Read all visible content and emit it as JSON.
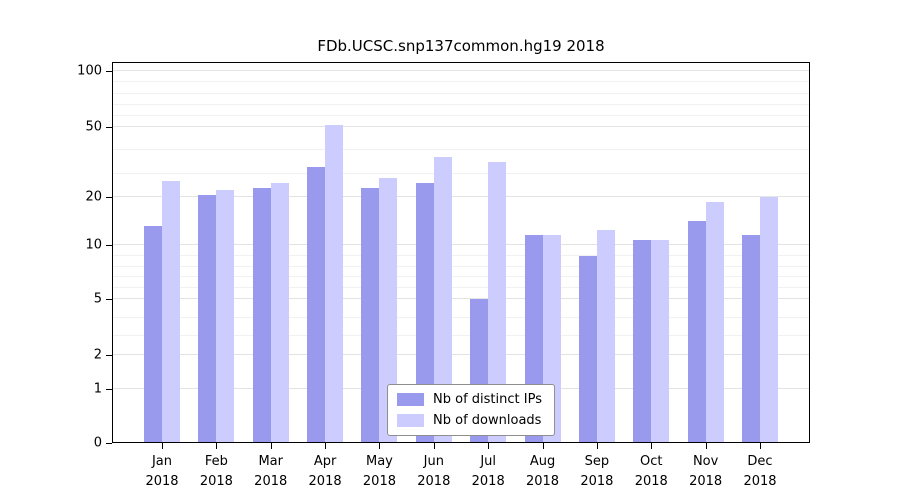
{
  "title": "FDb.UCSC.snp137common.hg19 2018",
  "chart_data": {
    "type": "bar",
    "title": "FDb.UCSC.snp137common.hg19 2018",
    "categories": [
      "Jan",
      "Feb",
      "Mar",
      "Apr",
      "May",
      "Jun",
      "Jul",
      "Aug",
      "Sep",
      "Oct",
      "Nov",
      "Dec"
    ],
    "x_year": "2018",
    "series": [
      {
        "name": "Nb of distinct IPs",
        "color": "#9999ee",
        "values": [
          14,
          21,
          24,
          33,
          24,
          26,
          5,
          12,
          9,
          11,
          15,
          12
        ]
      },
      {
        "name": "Nb of downloads",
        "color": "#ccccff",
        "values": [
          27,
          23,
          26,
          52,
          28,
          37,
          35,
          12,
          13,
          11,
          19,
          20
        ]
      }
    ],
    "y_ticks": [
      0,
      1,
      2,
      5,
      10,
      20,
      50,
      100
    ],
    "minor_gridlines": [
      3,
      4,
      6,
      7,
      8,
      9,
      30,
      40,
      60,
      70,
      80,
      90
    ],
    "ylim": [
      0,
      100
    ],
    "scale": "log-like",
    "grid": true,
    "legend_position": "bottom-center",
    "xlabel": "",
    "ylabel": ""
  }
}
